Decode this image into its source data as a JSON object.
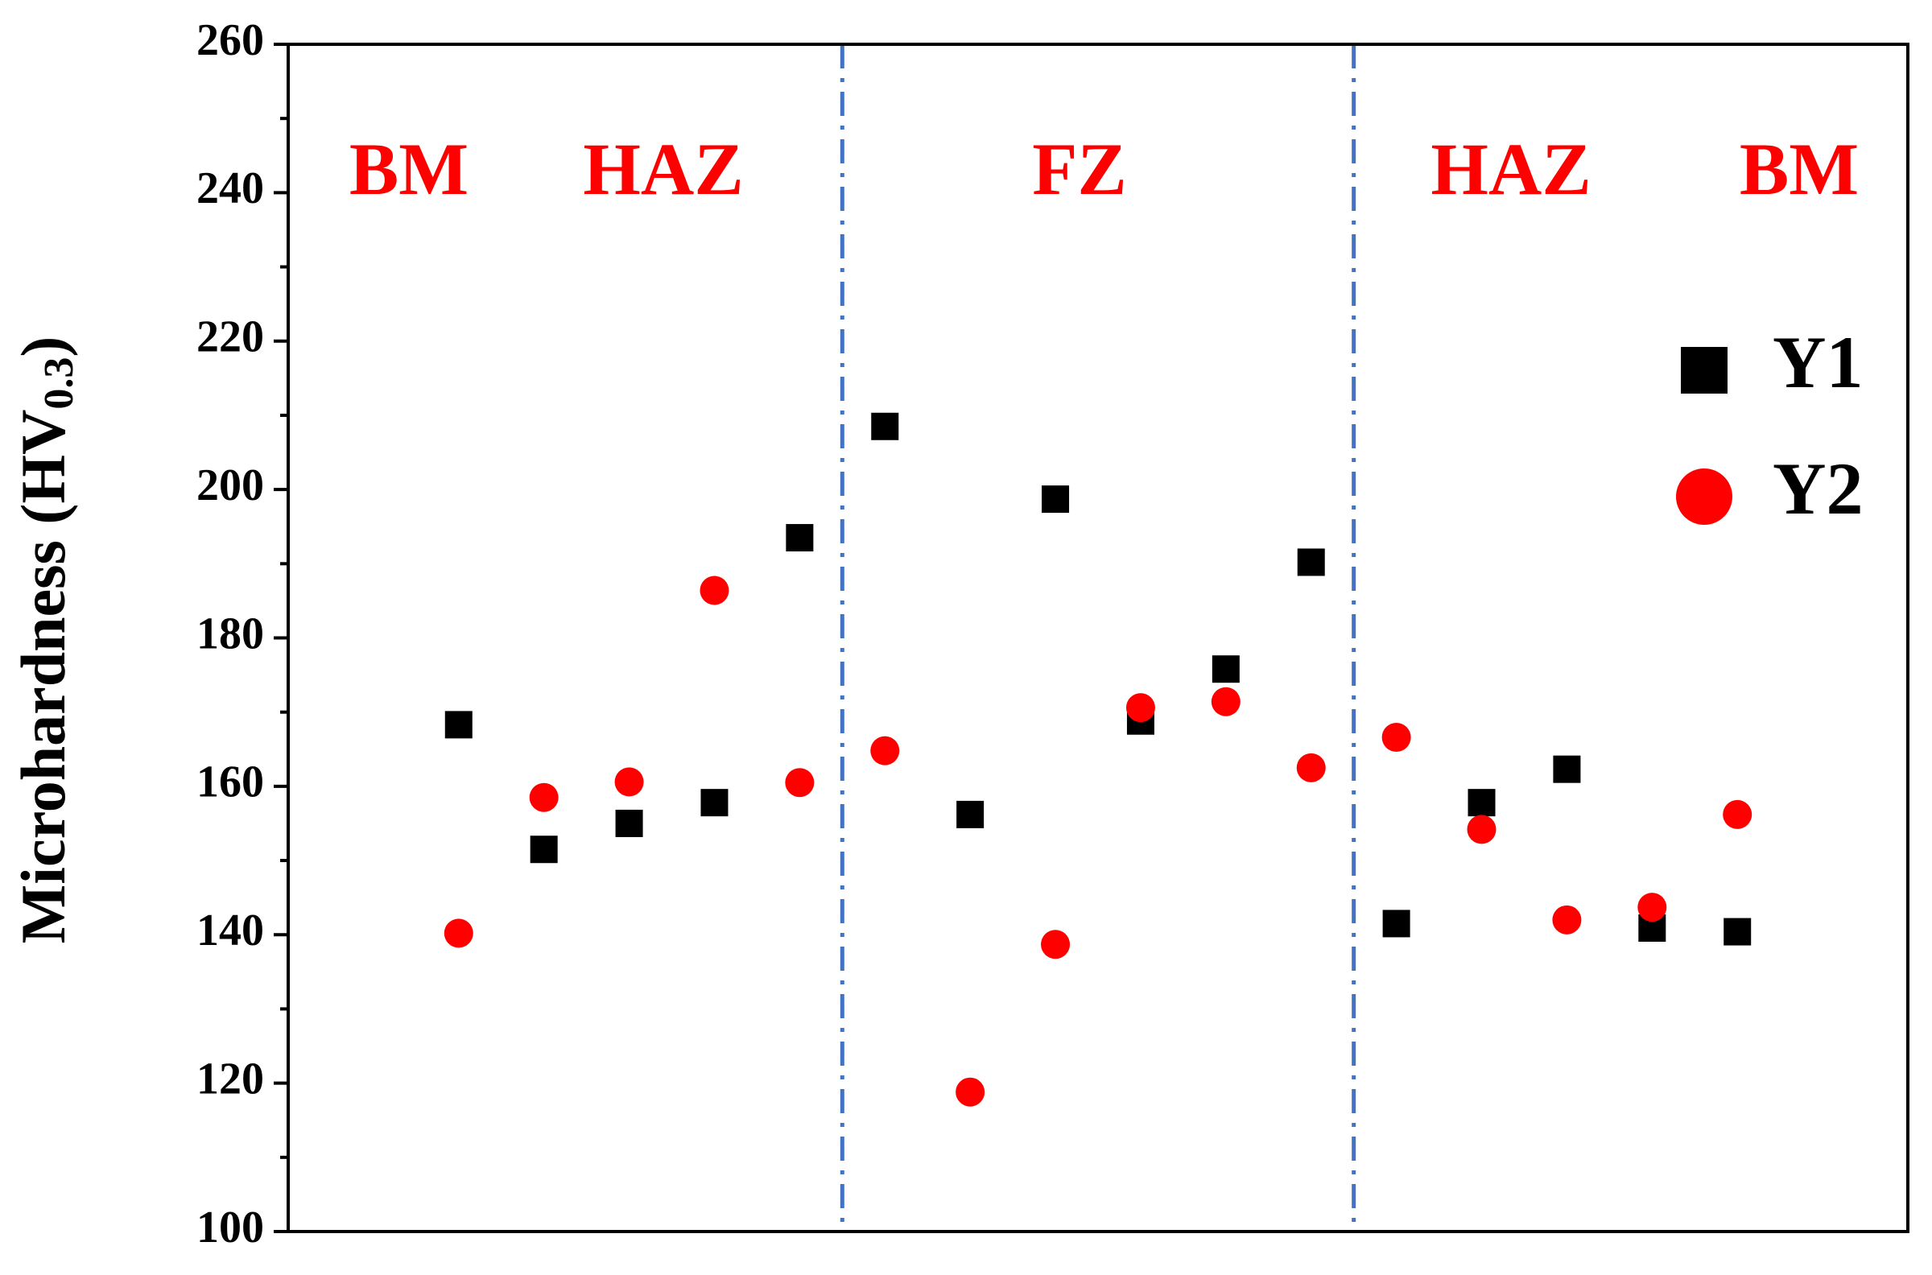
{
  "chart_data": {
    "type": "scatter",
    "ylabel": [
      "Microhardness (HV",
      "0.3",
      ")"
    ],
    "x": [
      1,
      2,
      3,
      4,
      5,
      6,
      7,
      8,
      9,
      10,
      11,
      12,
      13,
      14,
      15,
      16
    ],
    "xlim": [
      -1,
      18
    ],
    "ylim": [
      100,
      260
    ],
    "yticks": [
      100,
      120,
      140,
      160,
      180,
      200,
      220,
      240,
      260
    ],
    "yminorticks": [
      110,
      130,
      150,
      170,
      190,
      210,
      230,
      250
    ],
    "series": [
      {
        "name": "Y1",
        "color": "#000000",
        "marker": "square",
        "values": [
          168.3,
          151.5,
          155,
          157.8,
          193.5,
          208.5,
          156.2,
          198.7,
          168.8,
          175.8,
          190.2,
          141.5,
          157.8,
          162.3,
          140.9,
          140.4
        ]
      },
      {
        "name": "Y2",
        "color": "#ff0000",
        "marker": "circle",
        "values": [
          140.2,
          158.5,
          160.6,
          186.4,
          160.5,
          164.8,
          118.8,
          138.7,
          170.6,
          171.4,
          162.5,
          166.6,
          154.2,
          142,
          143.7,
          156.2
        ]
      }
    ],
    "vlines": [
      5.5,
      11.5
    ],
    "vline_color": "#4472c4",
    "regions": [
      "BM",
      "HAZ",
      "FZ",
      "HAZ",
      "BM"
    ],
    "region_color": "#ff0000",
    "legend": "right"
  }
}
